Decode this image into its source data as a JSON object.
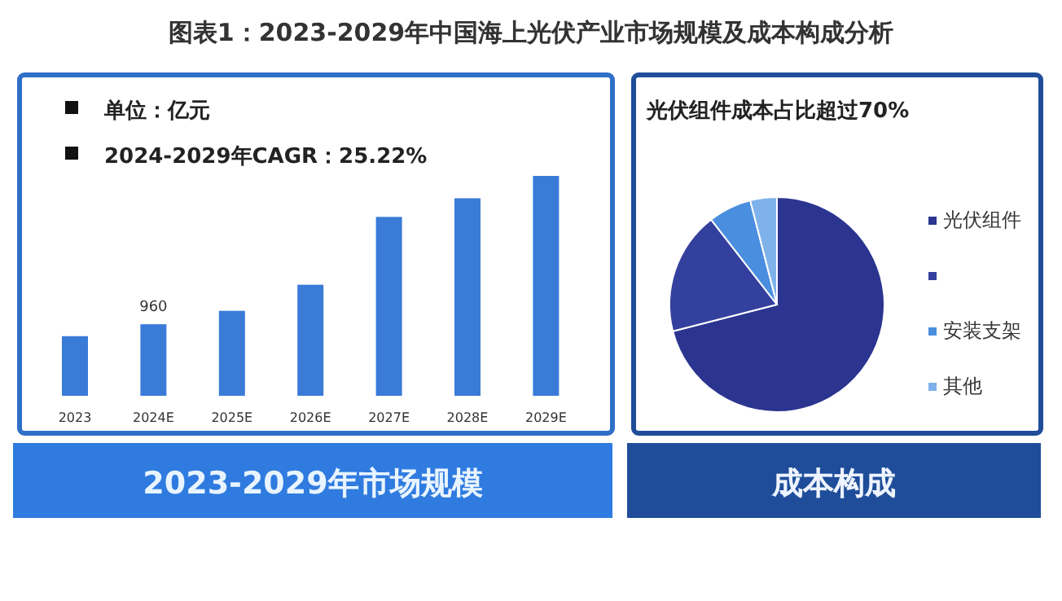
{
  "chart_data": [
    {
      "type": "bar",
      "title": "图表1：2023-2029年中国海上光伏产业市场规模及成本构成分析",
      "subtitle": "2023-2029年市场规模",
      "annotations": [
        "单位：亿元",
        "2024-2029年CAGR：25.22%"
      ],
      "categories": [
        "2023",
        "2024E",
        "2025E",
        "2026E",
        "2027E",
        "2028E",
        "2029E"
      ],
      "values": [
        800,
        960,
        1140,
        1490,
        2400,
        2650,
        2950
      ],
      "value_labels": [
        null,
        "960",
        null,
        null,
        null,
        null,
        null
      ],
      "color": "#3a7bd8"
    },
    {
      "type": "pie",
      "title": "成本构成",
      "subtitle": "光伏组件成本占比超过70%",
      "categories": [
        "光伏组件",
        null,
        "安装支架",
        "其他"
      ],
      "values": [
        71,
        18.5,
        6.5,
        4
      ],
      "colors": [
        "#2b3590",
        "#34409e",
        "#4a8ee0",
        "#7fb2ea"
      ],
      "legend": "right"
    }
  ]
}
